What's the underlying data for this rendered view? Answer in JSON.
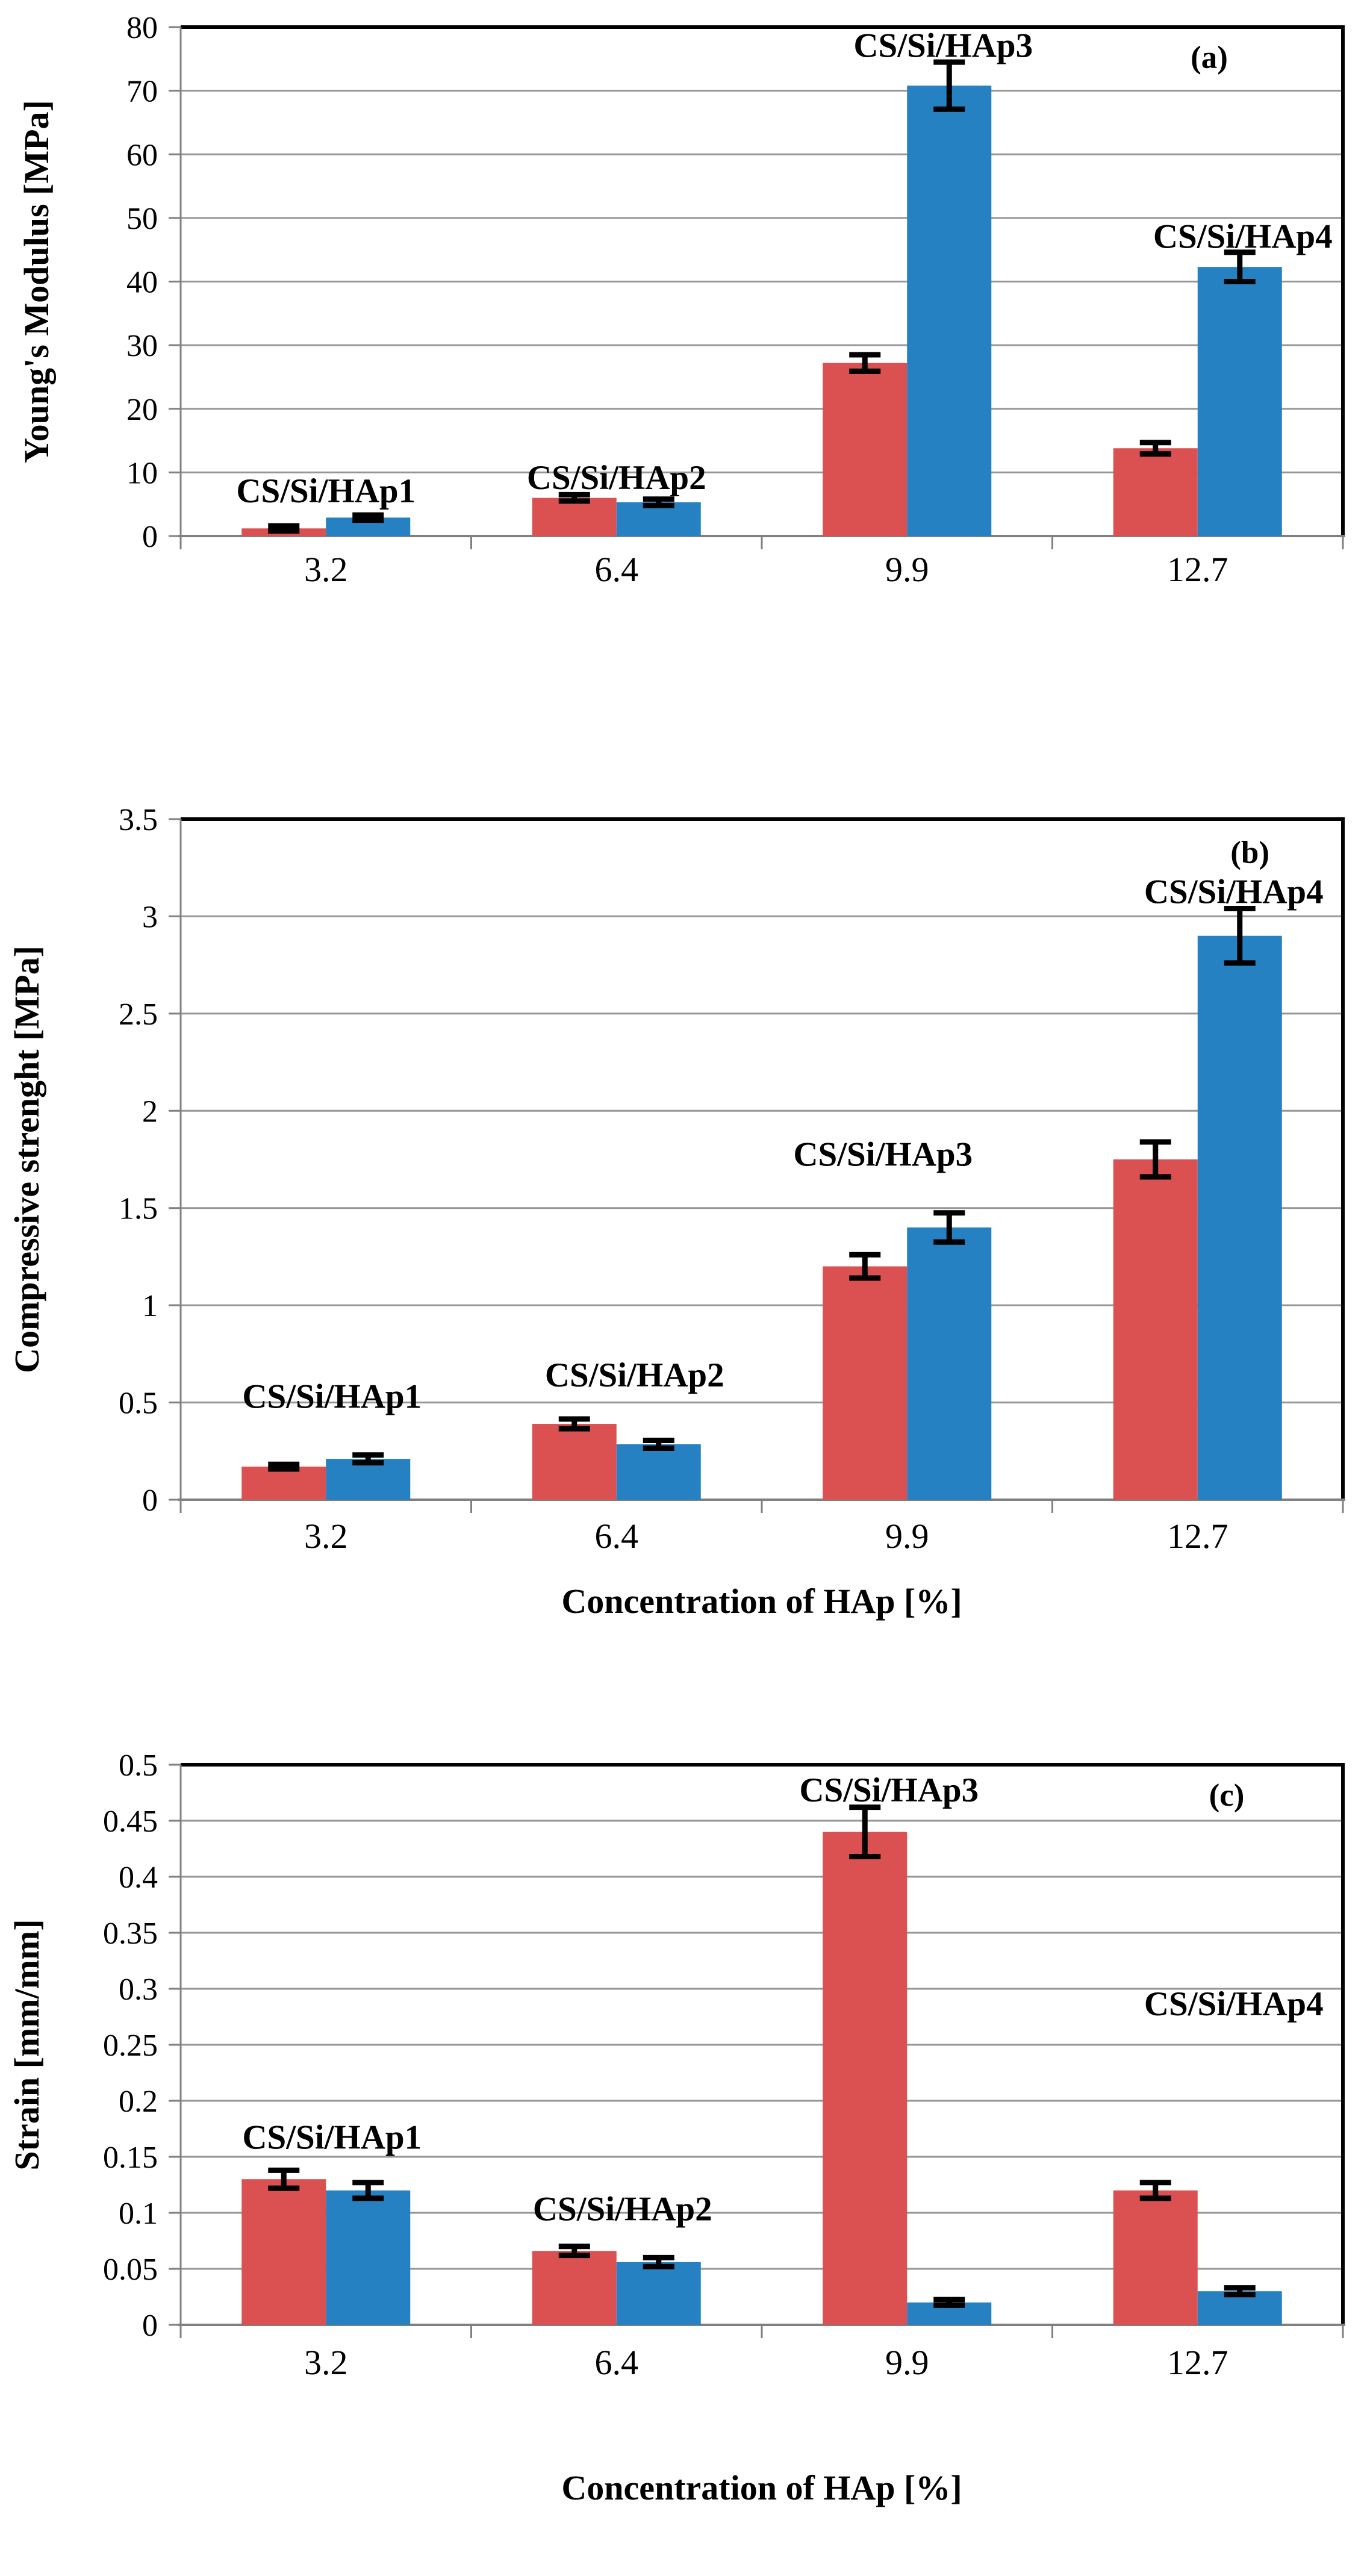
{
  "figure": {
    "background": "#ffffff"
  },
  "colors": {
    "series_red": "#DB5050",
    "series_blue": "#2581C1",
    "gridline": "#969696",
    "axis_gray": "#808080",
    "frame_black": "#000000",
    "error_bar": "#000000",
    "text": "#000000"
  },
  "chart_data": [
    {
      "id": "a",
      "type": "bar",
      "panel_label": {
        "text": "(a)",
        "xfrac": 0.885,
        "y": 75.3
      },
      "title": "",
      "xlabel": "",
      "ylabel": "Young's Modulus [MPa]",
      "categories": [
        "3.2",
        "6.4",
        "9.9",
        "12.7"
      ],
      "ylim": [
        0,
        80
      ],
      "ytick_values": [
        0,
        10,
        20,
        30,
        40,
        50,
        60,
        70,
        80
      ],
      "ytick_labels": [
        "0",
        "10",
        "20",
        "30",
        "40",
        "50",
        "60",
        "70",
        "80"
      ],
      "grid": true,
      "legend": "none",
      "series": [
        {
          "key": "red",
          "color": "#DB5050",
          "values": [
            1.2,
            6.0,
            27.2,
            13.8
          ],
          "errors": [
            0.4,
            0.5,
            1.3,
            0.9
          ]
        },
        {
          "key": "blue",
          "color": "#2581C1",
          "values": [
            2.9,
            5.3,
            70.8,
            42.3
          ],
          "errors": [
            0.4,
            0.5,
            3.7,
            2.3
          ]
        }
      ],
      "annotations": [
        {
          "text": "CS/Si/HAp1",
          "cat": 0,
          "dx": 0,
          "y": 7.2
        },
        {
          "text": "CS/Si/HAp2",
          "cat": 1,
          "dx": 0,
          "y": 9.3
        },
        {
          "text": "CS/Si/HAp3",
          "cat": 2,
          "dx": 60,
          "y": 77.2
        },
        {
          "text": "CS/Si/HAp4",
          "cat": 3,
          "dx": 75,
          "y": 47.2
        }
      ]
    },
    {
      "id": "b",
      "type": "bar",
      "panel_label": {
        "text": "(b)",
        "xfrac": 0.92,
        "y": 3.33
      },
      "title": "",
      "xlabel": "Concentration of HAp [%]",
      "ylabel": "Compressive strenght [MPa]",
      "categories": [
        "3.2",
        "6.4",
        "9.9",
        "12.7"
      ],
      "ylim": [
        0,
        3.5
      ],
      "ytick_values": [
        0,
        0.5,
        1,
        1.5,
        2,
        2.5,
        3,
        3.5
      ],
      "ytick_labels": [
        "0",
        "0.5",
        "1",
        "1.5",
        "2",
        "2.5",
        "3",
        "3.5"
      ],
      "grid": true,
      "legend": "none",
      "series": [
        {
          "key": "red",
          "color": "#DB5050",
          "values": [
            0.17,
            0.39,
            1.2,
            1.75
          ],
          "errors": [
            0.012,
            0.025,
            0.06,
            0.09
          ]
        },
        {
          "key": "blue",
          "color": "#2581C1",
          "values": [
            0.21,
            0.285,
            1.4,
            2.9
          ],
          "errors": [
            0.02,
            0.02,
            0.075,
            0.14
          ]
        }
      ],
      "annotations": [
        {
          "text": "CS/Si/HAp1",
          "cat": 0,
          "dx": 10,
          "y": 0.535
        },
        {
          "text": "CS/Si/HAp2",
          "cat": 1,
          "dx": 30,
          "y": 0.645
        },
        {
          "text": "CS/Si/HAp3",
          "cat": 2,
          "dx": -40,
          "y": 1.78
        },
        {
          "text": "CS/Si/HAp4",
          "cat": 3,
          "dx": 60,
          "y": 3.13
        }
      ]
    },
    {
      "id": "c",
      "type": "bar",
      "panel_label": {
        "text": "(c)",
        "xfrac": 0.9,
        "y": 0.473
      },
      "title": "",
      "xlabel": "Concentration of HAp [%]",
      "ylabel": "Strain [mm/mm]",
      "categories": [
        "3.2",
        "6.4",
        "9.9",
        "12.7"
      ],
      "ylim": [
        0,
        0.5
      ],
      "ytick_values": [
        0,
        0.05,
        0.1,
        0.15,
        0.2,
        0.25,
        0.3,
        0.35,
        0.4,
        0.45,
        0.5
      ],
      "ytick_labels": [
        "0",
        "0.05",
        "0.1",
        "0.15",
        "0.2",
        "0.25",
        "0.3",
        "0.35",
        "0.4",
        "0.45",
        "0.5"
      ],
      "grid": true,
      "legend": "none",
      "series": [
        {
          "key": "red",
          "color": "#DB5050",
          "values": [
            0.13,
            0.066,
            0.44,
            0.12
          ],
          "errors": [
            0.008,
            0.004,
            0.022,
            0.007
          ]
        },
        {
          "key": "blue",
          "color": "#2581C1",
          "values": [
            0.12,
            0.056,
            0.02,
            0.03
          ],
          "errors": [
            0.007,
            0.004,
            0.0025,
            0.003
          ]
        }
      ],
      "annotations": [
        {
          "text": "CS/Si/HAp1",
          "cat": 0,
          "dx": 10,
          "y": 0.168
        },
        {
          "text": "CS/Si/HAp2",
          "cat": 1,
          "dx": 10,
          "y": 0.104
        },
        {
          "text": "CS/Si/HAp3",
          "cat": 2,
          "dx": -30,
          "y": 0.478
        },
        {
          "text": "CS/Si/HAp4",
          "cat": 3,
          "dx": 60,
          "y": 0.287
        }
      ]
    }
  ]
}
